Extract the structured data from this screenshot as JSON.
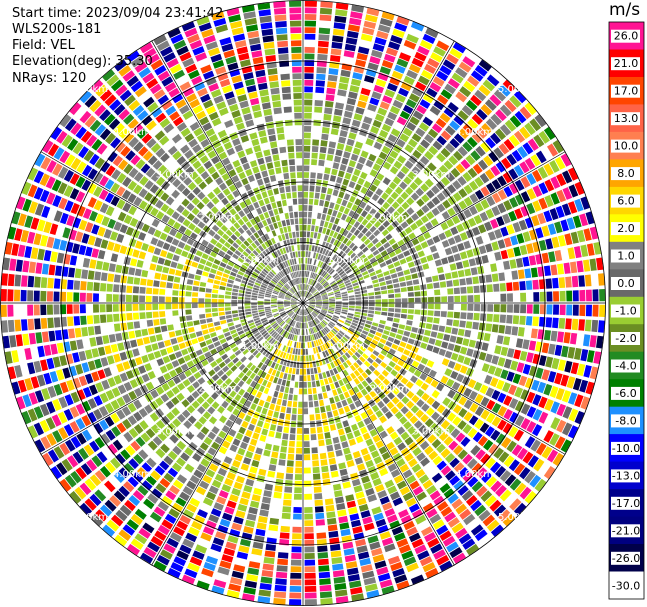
{
  "header": {
    "start_time": "Start time: 2023/09/04 23:41:42",
    "instrument": "WLS200s-181",
    "field": "Field: VEL",
    "elevation": "Elevation(deg): 35.30",
    "nrays": "NRays: 120"
  },
  "colorbar": {
    "unit": "m/s",
    "entries": [
      {
        "label": "26.0",
        "color": "#ff1493"
      },
      {
        "label": "21.0",
        "color": "#ff0000"
      },
      {
        "label": "17.0",
        "color": "#ff4500"
      },
      {
        "label": "13.0",
        "color": "#ff6347"
      },
      {
        "label": "10.0",
        "color": "#ff7f50"
      },
      {
        "label": "8.0",
        "color": "#ffa500"
      },
      {
        "label": "6.0",
        "color": "#ffd700"
      },
      {
        "label": "2.0",
        "color": "#ffff00"
      },
      {
        "label": "1.0",
        "color": "#808080"
      },
      {
        "label": "0.0",
        "color": "#696969"
      },
      {
        "label": "-1.0",
        "color": "#9acd32"
      },
      {
        "label": "-2.0",
        "color": "#6b8e23"
      },
      {
        "label": "-4.0",
        "color": "#228b22"
      },
      {
        "label": "-6.0",
        "color": "#008000"
      },
      {
        "label": "-8.0",
        "color": "#1e90ff"
      },
      {
        "label": "-10.0",
        "color": "#0000ff"
      },
      {
        "label": "-13.0",
        "color": "#0000cd"
      },
      {
        "label": "-17.0",
        "color": "#00008b"
      },
      {
        "label": "-21.0",
        "color": "#000080"
      },
      {
        "label": "-26.0",
        "color": "#00004a"
      },
      {
        "label": "-30.0",
        "color": "#ffffff"
      }
    ]
  },
  "chart_data": {
    "type": "heatmap",
    "projection": "polar PPI",
    "field": "VEL",
    "units": "m/s",
    "nrays": 120,
    "range_rings_km": [
      "1.00km",
      "2.00km",
      "3.00km",
      "4.00km",
      "5.00km"
    ],
    "spokes_every_deg": 30,
    "max_range_km": 5.6,
    "note_regions": {
      "inner_near_zero_velocity_km": [
        0,
        1.8
      ],
      "noise_beyond_km": 3.6
    }
  },
  "colors": {
    "ring": "#000000",
    "ring_label": "#ffffff"
  }
}
